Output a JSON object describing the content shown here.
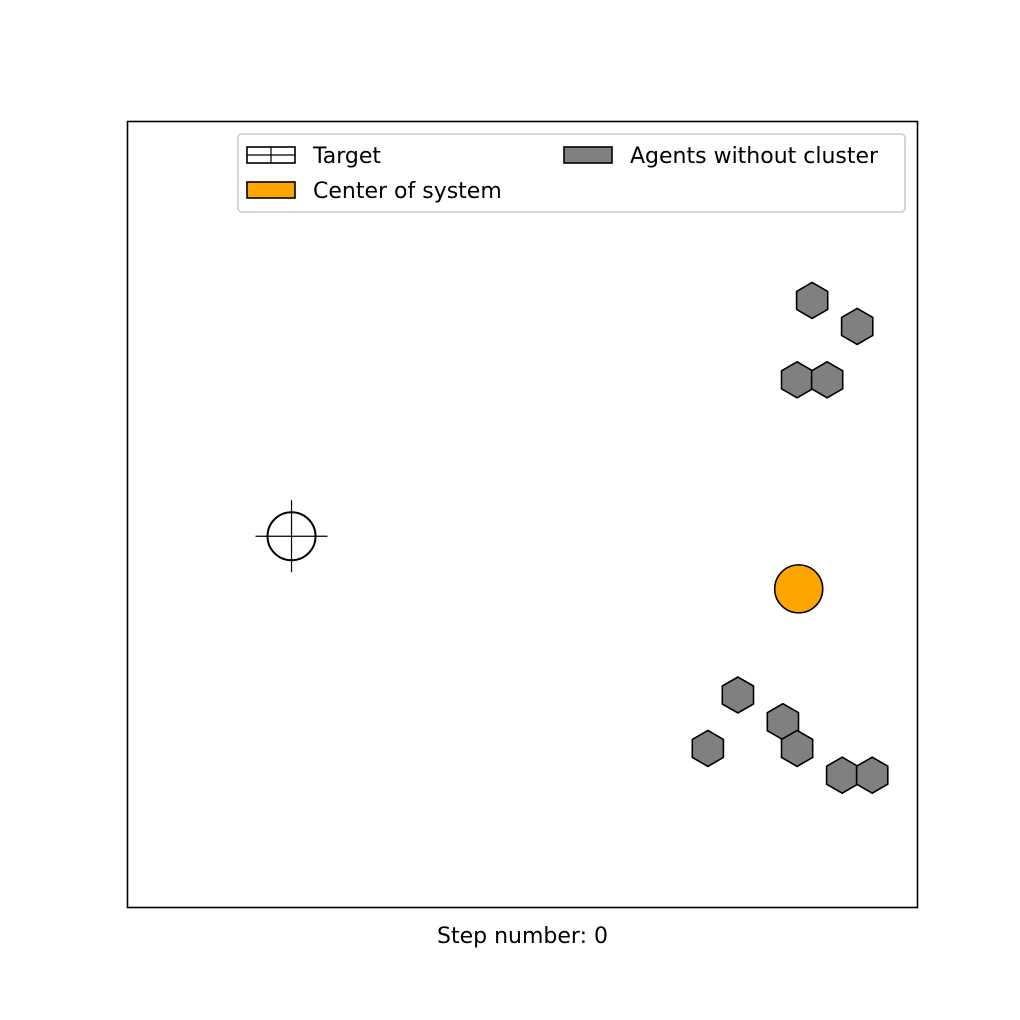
{
  "chart_data": {
    "type": "scatter",
    "title": "",
    "xlabel": "Step number: 0",
    "ylabel": "",
    "xlim": [
      0,
      1
    ],
    "ylim": [
      0,
      1
    ],
    "grid": false,
    "axis_ticks": false,
    "legend": {
      "placement": "top-right",
      "columns": 2,
      "entries": [
        {
          "label": "Target",
          "swatch": "target"
        },
        {
          "label": "Agents without cluster",
          "swatch": "agent"
        },
        {
          "label": "Center of system",
          "swatch": "center"
        }
      ]
    },
    "target": {
      "x": 0.207,
      "y": 0.473,
      "marker": "crosshair-circle"
    },
    "center_of_system": {
      "x": 0.849,
      "y": 0.406,
      "color": "#ffa500"
    },
    "agents": {
      "color": "#808080",
      "marker": "hexagon",
      "points": [
        {
          "x": 0.866,
          "y": 0.773
        },
        {
          "x": 0.923,
          "y": 0.74
        },
        {
          "x": 0.847,
          "y": 0.672
        },
        {
          "x": 0.885,
          "y": 0.672
        },
        {
          "x": 0.772,
          "y": 0.271
        },
        {
          "x": 0.829,
          "y": 0.237
        },
        {
          "x": 0.734,
          "y": 0.203
        },
        {
          "x": 0.847,
          "y": 0.203
        },
        {
          "x": 0.904,
          "y": 0.169
        },
        {
          "x": 0.942,
          "y": 0.169
        }
      ]
    }
  }
}
